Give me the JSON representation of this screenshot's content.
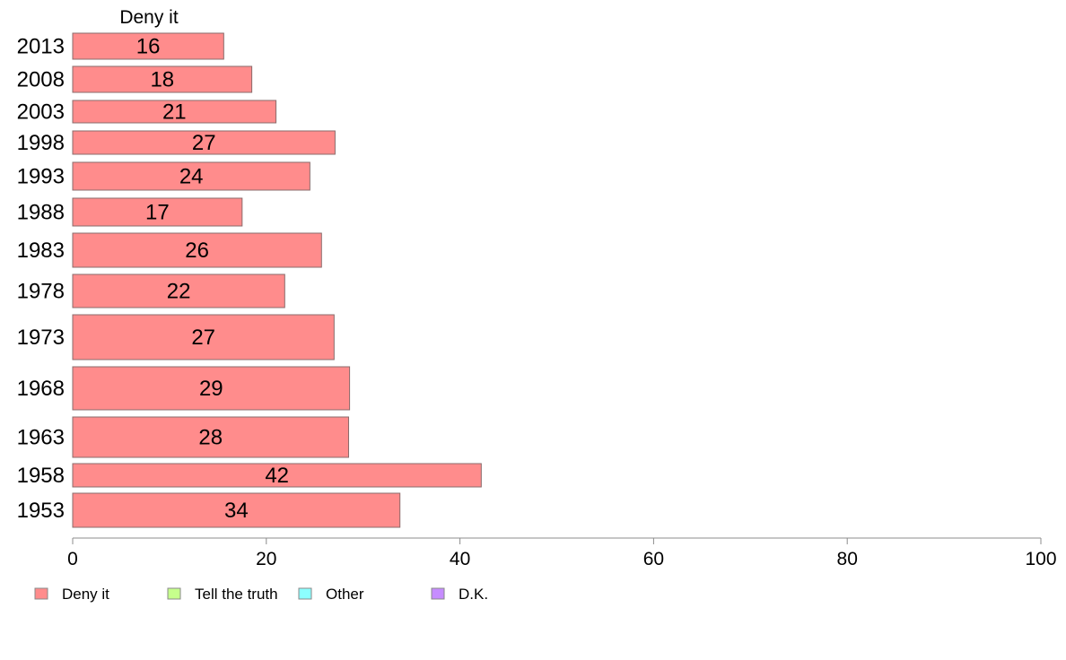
{
  "chart_data": {
    "type": "bar",
    "orientation": "horizontal",
    "column_header": "Deny it",
    "categories": [
      "2013",
      "2008",
      "2003",
      "1998",
      "1993",
      "1988",
      "1983",
      "1978",
      "1973",
      "1968",
      "1963",
      "1958",
      "1953"
    ],
    "series": [
      {
        "name": "Deny it",
        "color": "#ff8c8c",
        "values": [
          15.6,
          18.5,
          21,
          27.1,
          24.5,
          17.5,
          25.7,
          21.9,
          27,
          28.6,
          28.5,
          42.2,
          33.8
        ],
        "labels": [
          "16",
          "18",
          "21",
          "27",
          "24",
          "17",
          "26",
          "22",
          "27",
          "29",
          "28",
          "42",
          "34"
        ]
      }
    ],
    "xlim": [
      0,
      100
    ],
    "xticks": [
      "0",
      "20",
      "40",
      "60",
      "80",
      "100"
    ],
    "grid": false,
    "legend": {
      "position": "bottom",
      "items": [
        {
          "label": "Deny it",
          "color": "#ff8c8c"
        },
        {
          "label": "Tell the truth",
          "color": "#c6ff8c"
        },
        {
          "label": "Other",
          "color": "#8cffff"
        },
        {
          "label": "D.K.",
          "color": "#c68cff"
        }
      ]
    }
  }
}
